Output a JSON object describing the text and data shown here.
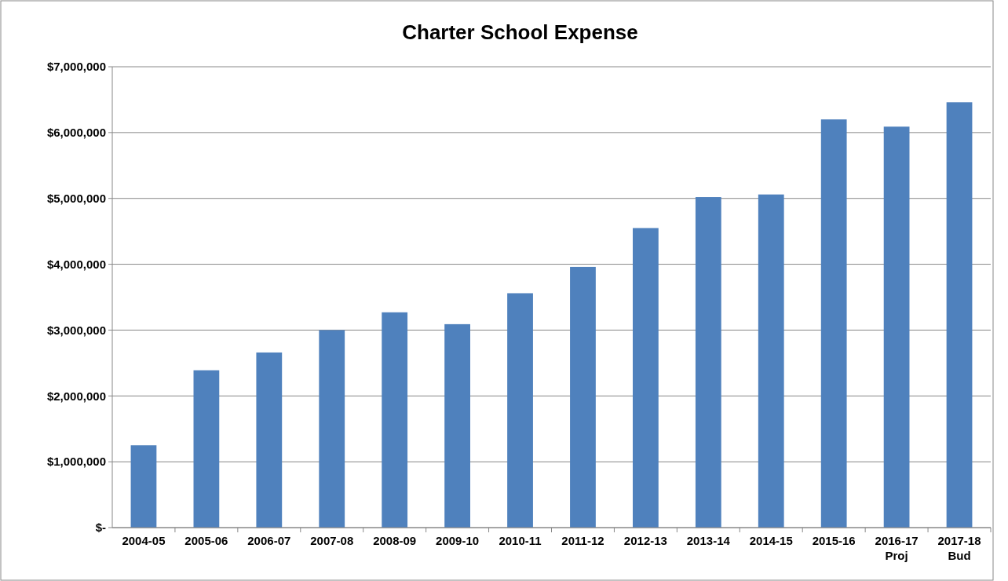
{
  "chart_data": {
    "type": "bar",
    "title": "Charter School Expense",
    "categories": [
      "2004-05",
      "2005-06",
      "2006-07",
      "2007-08",
      "2008-09",
      "2009-10",
      "2010-11",
      "2011-12",
      "2012-13",
      "2013-14",
      "2014-15",
      "2015-16",
      "2016-17\nProj",
      "2017-18\nBud"
    ],
    "values": [
      1250000,
      2390000,
      2660000,
      3000000,
      3270000,
      3090000,
      3560000,
      3960000,
      4550000,
      5020000,
      5060000,
      6200000,
      6090000,
      6460000
    ],
    "color": "#4f81bd",
    "ylim": [
      0,
      7000000
    ],
    "yticks": [
      {
        "value": 0,
        "label": "$-"
      },
      {
        "value": 1000000,
        "label": "$1,000,000"
      },
      {
        "value": 2000000,
        "label": "$2,000,000"
      },
      {
        "value": 3000000,
        "label": "$3,000,000"
      },
      {
        "value": 4000000,
        "label": "$4,000,000"
      },
      {
        "value": 5000000,
        "label": "$5,000,000"
      },
      {
        "value": 6000000,
        "label": "$6,000,000"
      },
      {
        "value": 7000000,
        "label": "$7,000,000"
      }
    ],
    "grid": "y"
  }
}
